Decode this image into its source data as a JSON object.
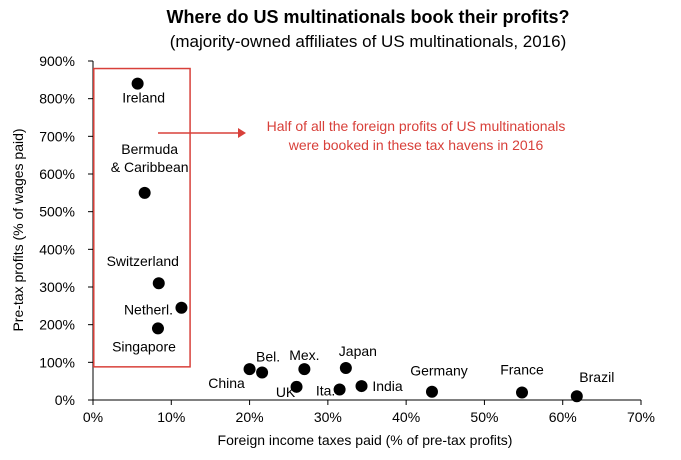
{
  "chart_data": {
    "type": "scatter",
    "title": "Where do US multinationals book their profits?",
    "subtitle": "(majority-owned affiliates of US multinationals, 2016)",
    "xlabel": "Foreign income taxes paid (% of pre-tax profits)",
    "ylabel": "Pre-tax profits (% of wages paid)",
    "xlim": [
      0,
      70
    ],
    "ylim": [
      0,
      900
    ],
    "x_ticks": [
      "0%",
      "10%",
      "20%",
      "30%",
      "40%",
      "50%",
      "60%",
      "70%"
    ],
    "y_ticks": [
      "0%",
      "100%",
      "200%",
      "300%",
      "400%",
      "500%",
      "600%",
      "700%",
      "800%",
      "900%"
    ],
    "grid": false,
    "points": [
      {
        "label": "Ireland",
        "x": 5.7,
        "y": 840
      },
      {
        "label": "Bermuda\n& Caribbean",
        "x": 6.6,
        "y": 550
      },
      {
        "label": "Switzerland",
        "x": 8.4,
        "y": 310
      },
      {
        "label": "Netherl.",
        "x": 11.3,
        "y": 245
      },
      {
        "label": "Singapore",
        "x": 8.3,
        "y": 190
      },
      {
        "label": "China",
        "x": 20.0,
        "y": 82
      },
      {
        "label": "Bel.",
        "x": 21.6,
        "y": 73
      },
      {
        "label": "Mex.",
        "x": 27.0,
        "y": 82
      },
      {
        "label": "UK",
        "x": 26.0,
        "y": 35
      },
      {
        "label": "Ita.",
        "x": 31.5,
        "y": 28
      },
      {
        "label": "Japan",
        "x": 32.3,
        "y": 85
      },
      {
        "label": "India",
        "x": 34.3,
        "y": 37
      },
      {
        "label": "Germany",
        "x": 43.3,
        "y": 22
      },
      {
        "label": "France",
        "x": 54.8,
        "y": 20
      },
      {
        "label": "Brazil",
        "x": 61.8,
        "y": 10
      }
    ],
    "highlight_box": {
      "x": [
        0.1,
        12.4
      ],
      "y": [
        88,
        880
      ]
    },
    "annotation": "Half of all the foreign profits of US multinationals\nwere booked in these tax havens in 2016",
    "colors": {
      "points": "#000000",
      "highlight": "#d8403a"
    }
  }
}
